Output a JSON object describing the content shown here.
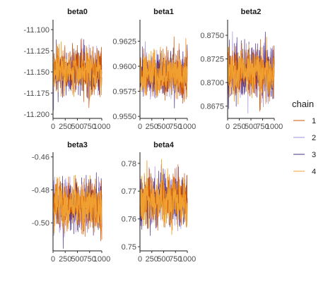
{
  "chart_data": {
    "type": "line",
    "x_range": [
      0,
      1000
    ],
    "x_ticks": [
      0,
      250,
      500,
      750,
      1000
    ],
    "x_tick_labels": [
      "0",
      "250",
      "500",
      "750",
      "1000"
    ],
    "legend": {
      "title": "chain",
      "placement": "right",
      "entries": [
        {
          "label": "1",
          "color": "#d35400"
        },
        {
          "label": "2",
          "color": "#a08fd8"
        },
        {
          "label": "3",
          "color": "#4a2c86"
        },
        {
          "label": "4",
          "color": "#f0a030"
        }
      ]
    },
    "panels": [
      {
        "title": "beta0",
        "mean": -11.15,
        "sd": 0.013,
        "ylim": [
          -11.205,
          -11.09
        ],
        "y_ticks": [
          -11.1,
          -11.125,
          -11.15,
          -11.175,
          -11.2
        ],
        "y_tick_labels": [
          "-11.100",
          "-11.125",
          "-11.150",
          "-11.175",
          "-11.200"
        ]
      },
      {
        "title": "beta1",
        "mean": 0.9592,
        "sd": 0.0011,
        "ylim": [
          0.9548,
          0.9645
        ],
        "y_ticks": [
          0.9625,
          0.96,
          0.9575,
          0.955
        ],
        "y_tick_labels": [
          "0.9625",
          "0.9600",
          "0.9575",
          "0.9550"
        ]
      },
      {
        "title": "beta2",
        "mean": 0.8711,
        "sd": 0.0013,
        "ylim": [
          0.8662,
          0.8765
        ],
        "y_ticks": [
          0.875,
          0.8725,
          0.87,
          0.8675
        ],
        "y_tick_labels": [
          "0.8750",
          "0.8725",
          "0.8700",
          "0.8675"
        ]
      },
      {
        "title": "beta3",
        "mean": -0.49,
        "sd": 0.0075,
        "ylim": [
          -0.517,
          -0.458
        ],
        "y_ticks": [
          -0.46,
          -0.48,
          -0.5
        ],
        "y_tick_labels": [
          "-0.46",
          "-0.48",
          "-0.50"
        ]
      },
      {
        "title": "beta4",
        "mean": 0.7665,
        "sd": 0.0045,
        "ylim": [
          0.7485,
          0.7835
        ],
        "y_ticks": [
          0.78,
          0.77,
          0.76,
          0.75
        ],
        "y_tick_labels": [
          "0.78",
          "0.77",
          "0.76",
          "0.75"
        ]
      }
    ],
    "iterations_per_chain": 1000
  }
}
